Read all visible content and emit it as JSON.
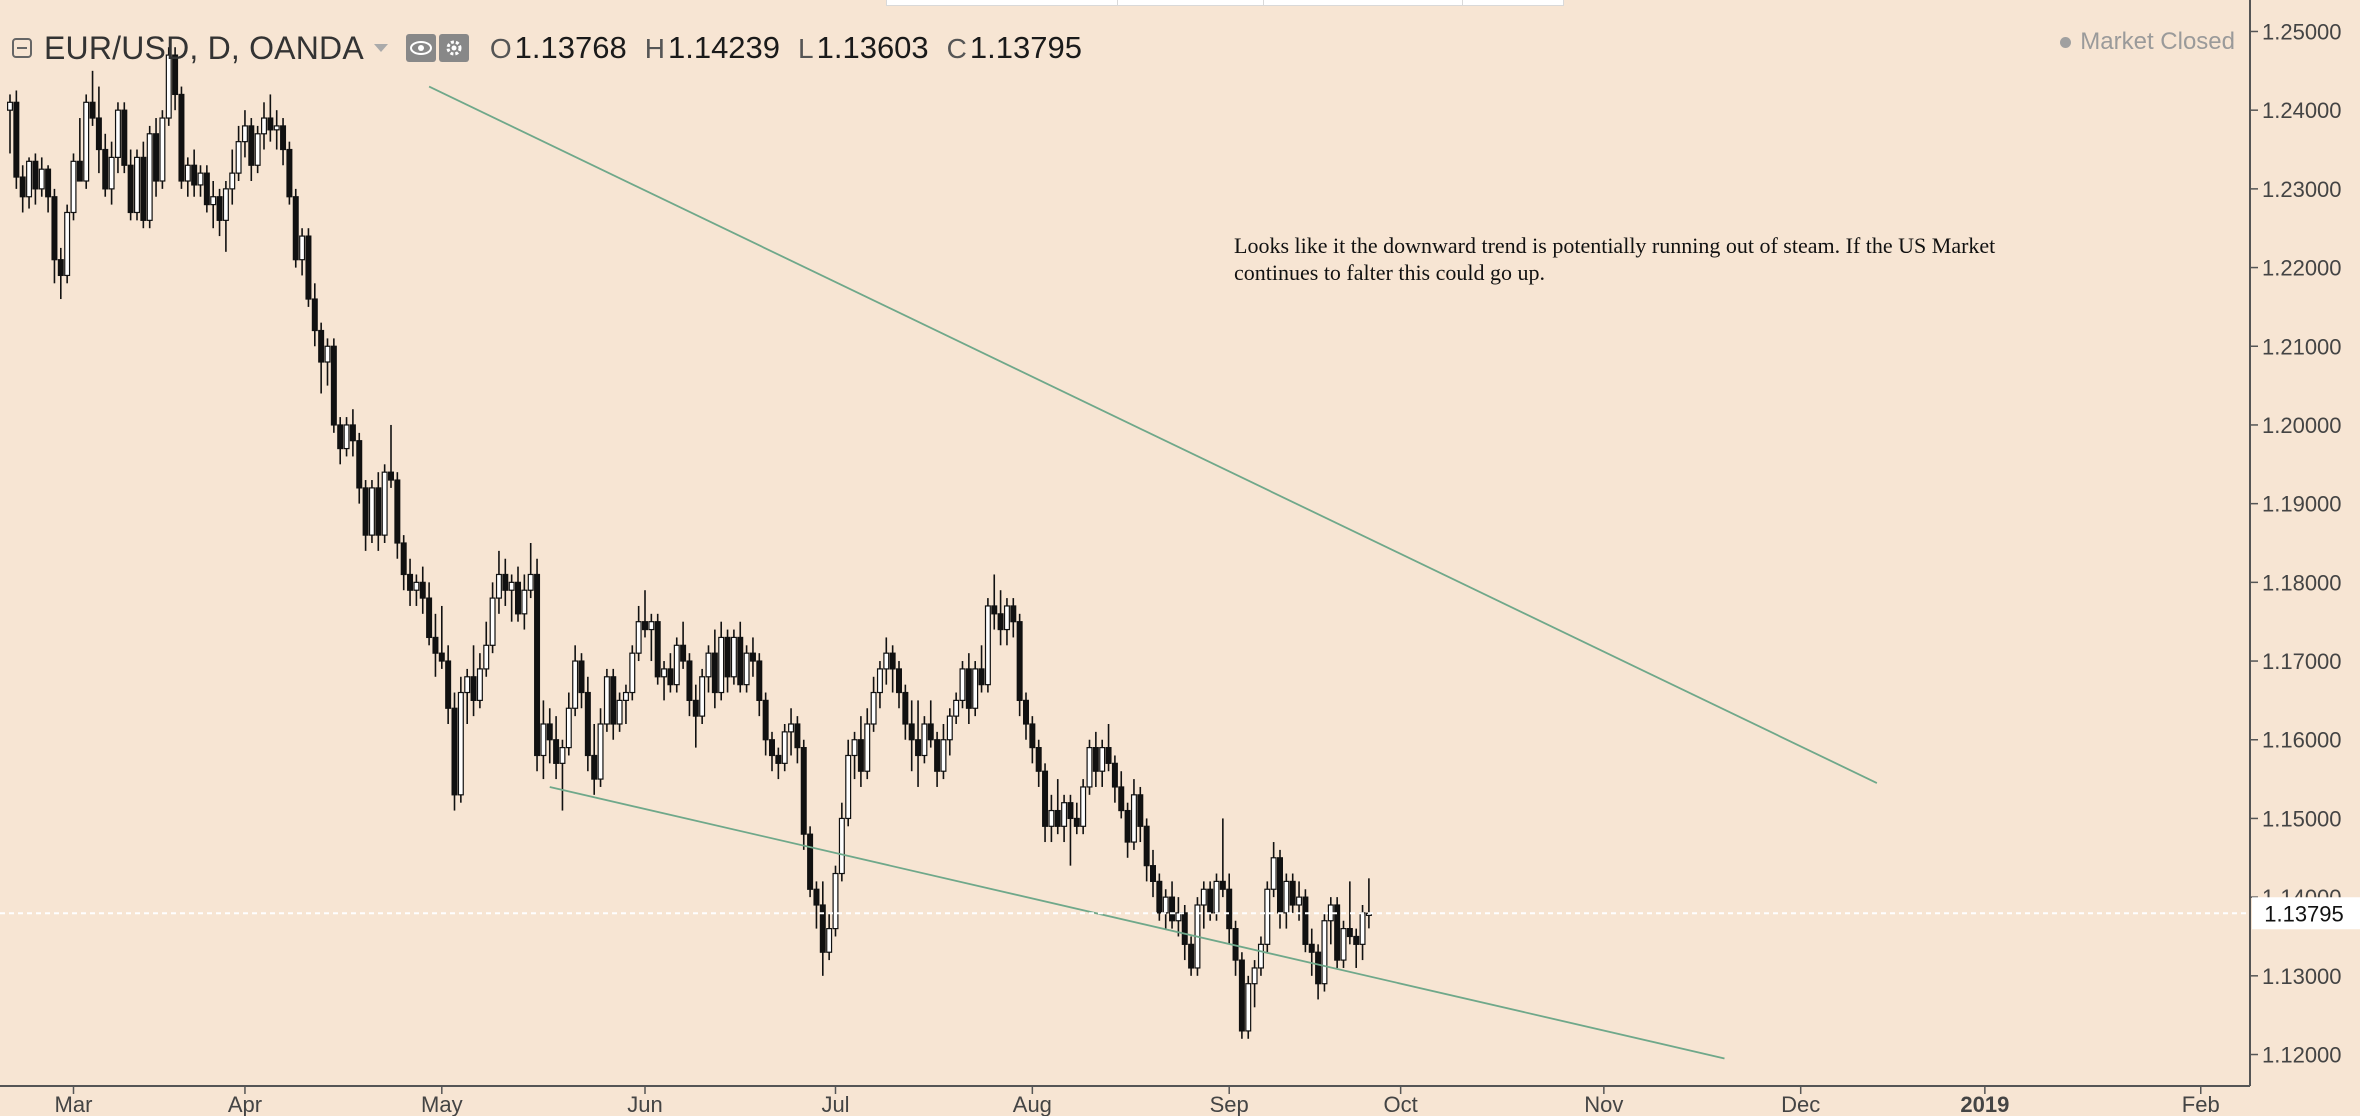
{
  "header": {
    "symbol": "EUR/USD, D, OANDA",
    "open_key": "O",
    "open": "1.13768",
    "high_key": "H",
    "high": "1.14239",
    "low_key": "L",
    "low": "1.13603",
    "close_key": "C",
    "close": "1.13795"
  },
  "status": {
    "text": "Market Closed"
  },
  "annotation": "Looks like it the downward trend is potentially running out of steam. If the US Market continues to falter this could go up.",
  "last_price_label": "1.13795",
  "colors": {
    "background": "#f7e5d3",
    "candle": "#111111",
    "trendline": "#6fa88a",
    "axis": "#555555"
  },
  "chart_data": {
    "type": "candlestick",
    "title": "EUR/USD, D, OANDA",
    "ylim": [
      1.116,
      1.254
    ],
    "y_ticks": [
      "1.25000",
      "1.24000",
      "1.23000",
      "1.22000",
      "1.21000",
      "1.20000",
      "1.19000",
      "1.18000",
      "1.17000",
      "1.16000",
      "1.15000",
      "1.14000",
      "1.13000",
      "1.12000"
    ],
    "x_ticks": [
      {
        "label": "Mar",
        "index": 10
      },
      {
        "label": "Apr",
        "index": 37
      },
      {
        "label": "May",
        "index": 68
      },
      {
        "label": "Jun",
        "index": 100
      },
      {
        "label": "Jul",
        "index": 130
      },
      {
        "label": "Aug",
        "index": 161
      },
      {
        "label": "Sep",
        "index": 192
      },
      {
        "label": "Oct",
        "index": 219
      },
      {
        "label": "Nov",
        "index": 251
      },
      {
        "label": "Dec",
        "index": 282
      },
      {
        "label": "2019",
        "index": 311
      },
      {
        "label": "Feb",
        "index": 345
      }
    ],
    "last_price": 1.13795,
    "ohlc": [
      [
        1.24,
        1.242,
        1.2345,
        1.241
      ],
      [
        1.241,
        1.2425,
        1.23,
        1.2315
      ],
      [
        1.2315,
        1.233,
        1.227,
        1.229
      ],
      [
        1.229,
        1.234,
        1.2275,
        1.2335
      ],
      [
        1.2335,
        1.2345,
        1.228,
        1.23
      ],
      [
        1.23,
        1.234,
        1.229,
        1.2325
      ],
      [
        1.2325,
        1.233,
        1.227,
        1.229
      ],
      [
        1.229,
        1.23,
        1.218,
        1.221
      ],
      [
        1.221,
        1.2225,
        1.216,
        1.219
      ],
      [
        1.219,
        1.228,
        1.218,
        1.227
      ],
      [
        1.227,
        1.2345,
        1.226,
        1.2335
      ],
      [
        1.2335,
        1.239,
        1.231,
        1.231
      ],
      [
        1.231,
        1.242,
        1.23,
        1.241
      ],
      [
        1.241,
        1.245,
        1.238,
        1.239
      ],
      [
        1.239,
        1.243,
        1.232,
        1.235
      ],
      [
        1.235,
        1.237,
        1.229,
        1.23
      ],
      [
        1.23,
        1.236,
        1.228,
        1.234
      ],
      [
        1.234,
        1.241,
        1.232,
        1.24
      ],
      [
        1.24,
        1.241,
        1.232,
        1.233
      ],
      [
        1.233,
        1.235,
        1.226,
        1.227
      ],
      [
        1.227,
        1.235,
        1.226,
        1.234
      ],
      [
        1.234,
        1.236,
        1.225,
        1.226
      ],
      [
        1.226,
        1.238,
        1.225,
        1.237
      ],
      [
        1.237,
        1.239,
        1.229,
        1.231
      ],
      [
        1.231,
        1.24,
        1.23,
        1.239
      ],
      [
        1.239,
        1.248,
        1.238,
        1.247
      ],
      [
        1.247,
        1.248,
        1.24,
        1.242
      ],
      [
        1.242,
        1.243,
        1.23,
        1.231
      ],
      [
        1.231,
        1.234,
        1.229,
        1.233
      ],
      [
        1.233,
        1.235,
        1.229,
        1.2305
      ],
      [
        1.2305,
        1.233,
        1.229,
        1.232
      ],
      [
        1.232,
        1.233,
        1.227,
        1.228
      ],
      [
        1.228,
        1.231,
        1.225,
        1.229
      ],
      [
        1.229,
        1.23,
        1.224,
        1.226
      ],
      [
        1.226,
        1.231,
        1.222,
        1.23
      ],
      [
        1.23,
        1.235,
        1.228,
        1.232
      ],
      [
        1.232,
        1.238,
        1.231,
        1.236
      ],
      [
        1.236,
        1.24,
        1.234,
        1.238
      ],
      [
        1.238,
        1.239,
        1.231,
        1.233
      ],
      [
        1.233,
        1.238,
        1.232,
        1.237
      ],
      [
        1.237,
        1.241,
        1.235,
        1.239
      ],
      [
        1.239,
        1.242,
        1.236,
        1.2375
      ],
      [
        1.2375,
        1.24,
        1.235,
        1.238
      ],
      [
        1.238,
        1.239,
        1.233,
        1.235
      ],
      [
        1.235,
        1.236,
        1.228,
        1.229
      ],
      [
        1.229,
        1.23,
        1.22,
        1.221
      ],
      [
        1.221,
        1.225,
        1.219,
        1.224
      ],
      [
        1.224,
        1.225,
        1.215,
        1.216
      ],
      [
        1.216,
        1.218,
        1.21,
        1.212
      ],
      [
        1.212,
        1.213,
        1.204,
        1.208
      ],
      [
        1.208,
        1.211,
        1.205,
        1.21
      ],
      [
        1.21,
        1.211,
        1.199,
        1.2
      ],
      [
        1.2,
        1.201,
        1.195,
        1.197
      ],
      [
        1.197,
        1.201,
        1.196,
        1.2
      ],
      [
        1.2,
        1.202,
        1.196,
        1.198
      ],
      [
        1.198,
        1.199,
        1.19,
        1.192
      ],
      [
        1.192,
        1.193,
        1.184,
        1.186
      ],
      [
        1.186,
        1.193,
        1.185,
        1.192
      ],
      [
        1.192,
        1.194,
        1.184,
        1.186
      ],
      [
        1.186,
        1.195,
        1.185,
        1.194
      ],
      [
        1.194,
        1.2,
        1.192,
        1.193
      ],
      [
        1.193,
        1.194,
        1.183,
        1.185
      ],
      [
        1.185,
        1.186,
        1.179,
        1.181
      ],
      [
        1.181,
        1.183,
        1.177,
        1.179
      ],
      [
        1.179,
        1.181,
        1.177,
        1.18
      ],
      [
        1.18,
        1.182,
        1.176,
        1.178
      ],
      [
        1.178,
        1.18,
        1.172,
        1.173
      ],
      [
        1.173,
        1.176,
        1.168,
        1.171
      ],
      [
        1.171,
        1.177,
        1.169,
        1.17
      ],
      [
        1.17,
        1.172,
        1.162,
        1.164
      ],
      [
        1.164,
        1.166,
        1.151,
        1.153
      ],
      [
        1.153,
        1.168,
        1.152,
        1.166
      ],
      [
        1.166,
        1.169,
        1.162,
        1.168
      ],
      [
        1.168,
        1.172,
        1.163,
        1.165
      ],
      [
        1.165,
        1.171,
        1.164,
        1.169
      ],
      [
        1.169,
        1.175,
        1.168,
        1.172
      ],
      [
        1.172,
        1.18,
        1.171,
        1.178
      ],
      [
        1.178,
        1.184,
        1.176,
        1.181
      ],
      [
        1.181,
        1.183,
        1.177,
        1.179
      ],
      [
        1.179,
        1.181,
        1.175,
        1.18
      ],
      [
        1.18,
        1.182,
        1.175,
        1.176
      ],
      [
        1.176,
        1.181,
        1.174,
        1.179
      ],
      [
        1.179,
        1.185,
        1.178,
        1.181
      ],
      [
        1.181,
        1.183,
        1.156,
        1.158
      ],
      [
        1.158,
        1.165,
        1.155,
        1.162
      ],
      [
        1.162,
        1.164,
        1.157,
        1.16
      ],
      [
        1.16,
        1.163,
        1.155,
        1.157
      ],
      [
        1.157,
        1.16,
        1.151,
        1.159
      ],
      [
        1.159,
        1.166,
        1.158,
        1.164
      ],
      [
        1.164,
        1.172,
        1.163,
        1.17
      ],
      [
        1.17,
        1.171,
        1.164,
        1.166
      ],
      [
        1.166,
        1.168,
        1.156,
        1.158
      ],
      [
        1.158,
        1.162,
        1.153,
        1.155
      ],
      [
        1.155,
        1.164,
        1.154,
        1.162
      ],
      [
        1.162,
        1.169,
        1.161,
        1.168
      ],
      [
        1.168,
        1.169,
        1.16,
        1.162
      ],
      [
        1.162,
        1.166,
        1.161,
        1.165
      ],
      [
        1.165,
        1.167,
        1.162,
        1.166
      ],
      [
        1.166,
        1.172,
        1.165,
        1.171
      ],
      [
        1.171,
        1.177,
        1.17,
        1.175
      ],
      [
        1.175,
        1.179,
        1.173,
        1.174
      ],
      [
        1.174,
        1.176,
        1.17,
        1.175
      ],
      [
        1.175,
        1.176,
        1.167,
        1.168
      ],
      [
        1.168,
        1.17,
        1.165,
        1.169
      ],
      [
        1.169,
        1.171,
        1.166,
        1.167
      ],
      [
        1.167,
        1.173,
        1.166,
        1.172
      ],
      [
        1.172,
        1.175,
        1.169,
        1.17
      ],
      [
        1.17,
        1.171,
        1.163,
        1.165
      ],
      [
        1.165,
        1.167,
        1.159,
        1.163
      ],
      [
        1.163,
        1.169,
        1.162,
        1.168
      ],
      [
        1.168,
        1.172,
        1.166,
        1.171
      ],
      [
        1.171,
        1.174,
        1.164,
        1.166
      ],
      [
        1.166,
        1.175,
        1.165,
        1.173
      ],
      [
        1.173,
        1.174,
        1.166,
        1.168
      ],
      [
        1.168,
        1.174,
        1.167,
        1.173
      ],
      [
        1.173,
        1.175,
        1.166,
        1.167
      ],
      [
        1.167,
        1.172,
        1.166,
        1.171
      ],
      [
        1.171,
        1.173,
        1.168,
        1.17
      ],
      [
        1.17,
        1.171,
        1.163,
        1.165
      ],
      [
        1.165,
        1.166,
        1.158,
        1.16
      ],
      [
        1.16,
        1.161,
        1.156,
        1.158
      ],
      [
        1.158,
        1.159,
        1.155,
        1.157
      ],
      [
        1.157,
        1.162,
        1.156,
        1.161
      ],
      [
        1.161,
        1.164,
        1.158,
        1.162
      ],
      [
        1.162,
        1.163,
        1.157,
        1.159
      ],
      [
        1.159,
        1.16,
        1.146,
        1.148
      ],
      [
        1.148,
        1.149,
        1.14,
        1.141
      ],
      [
        1.141,
        1.142,
        1.136,
        1.139
      ],
      [
        1.139,
        1.142,
        1.13,
        1.133
      ],
      [
        1.133,
        1.138,
        1.132,
        1.136
      ],
      [
        1.136,
        1.144,
        1.135,
        1.143
      ],
      [
        1.143,
        1.152,
        1.142,
        1.15
      ],
      [
        1.15,
        1.16,
        1.149,
        1.158
      ],
      [
        1.158,
        1.161,
        1.155,
        1.16
      ],
      [
        1.16,
        1.163,
        1.154,
        1.156
      ],
      [
        1.156,
        1.164,
        1.155,
        1.162
      ],
      [
        1.162,
        1.168,
        1.161,
        1.166
      ],
      [
        1.166,
        1.17,
        1.164,
        1.169
      ],
      [
        1.169,
        1.173,
        1.167,
        1.171
      ],
      [
        1.171,
        1.172,
        1.166,
        1.169
      ],
      [
        1.169,
        1.17,
        1.164,
        1.166
      ],
      [
        1.166,
        1.167,
        1.16,
        1.162
      ],
      [
        1.162,
        1.165,
        1.156,
        1.16
      ],
      [
        1.16,
        1.165,
        1.154,
        1.158
      ],
      [
        1.158,
        1.163,
        1.157,
        1.162
      ],
      [
        1.162,
        1.165,
        1.159,
        1.16
      ],
      [
        1.16,
        1.161,
        1.154,
        1.156
      ],
      [
        1.156,
        1.162,
        1.155,
        1.16
      ],
      [
        1.16,
        1.164,
        1.158,
        1.163
      ],
      [
        1.163,
        1.166,
        1.162,
        1.165
      ],
      [
        1.165,
        1.17,
        1.164,
        1.169
      ],
      [
        1.169,
        1.171,
        1.162,
        1.164
      ],
      [
        1.164,
        1.17,
        1.163,
        1.169
      ],
      [
        1.169,
        1.172,
        1.166,
        1.167
      ],
      [
        1.167,
        1.178,
        1.166,
        1.177
      ],
      [
        1.177,
        1.181,
        1.174,
        1.176
      ],
      [
        1.176,
        1.179,
        1.172,
        1.174
      ],
      [
        1.174,
        1.178,
        1.172,
        1.177
      ],
      [
        1.177,
        1.178,
        1.173,
        1.175
      ],
      [
        1.175,
        1.176,
        1.163,
        1.165
      ],
      [
        1.165,
        1.166,
        1.16,
        1.162
      ],
      [
        1.162,
        1.163,
        1.157,
        1.159
      ],
      [
        1.159,
        1.16,
        1.154,
        1.156
      ],
      [
        1.156,
        1.157,
        1.147,
        1.149
      ],
      [
        1.149,
        1.153,
        1.147,
        1.151
      ],
      [
        1.151,
        1.155,
        1.148,
        1.149
      ],
      [
        1.149,
        1.153,
        1.147,
        1.152
      ],
      [
        1.152,
        1.153,
        1.144,
        1.15
      ],
      [
        1.15,
        1.152,
        1.148,
        1.149
      ],
      [
        1.149,
        1.155,
        1.148,
        1.154
      ],
      [
        1.154,
        1.16,
        1.153,
        1.159
      ],
      [
        1.159,
        1.161,
        1.154,
        1.156
      ],
      [
        1.156,
        1.16,
        1.154,
        1.159
      ],
      [
        1.159,
        1.162,
        1.156,
        1.157
      ],
      [
        1.157,
        1.158,
        1.152,
        1.154
      ],
      [
        1.154,
        1.156,
        1.15,
        1.151
      ],
      [
        1.151,
        1.152,
        1.145,
        1.147
      ],
      [
        1.147,
        1.155,
        1.146,
        1.153
      ],
      [
        1.153,
        1.154,
        1.147,
        1.149
      ],
      [
        1.149,
        1.15,
        1.142,
        1.144
      ],
      [
        1.144,
        1.146,
        1.14,
        1.142
      ],
      [
        1.142,
        1.143,
        1.137,
        1.138
      ],
      [
        1.138,
        1.141,
        1.136,
        1.14
      ],
      [
        1.14,
        1.142,
        1.136,
        1.137
      ],
      [
        1.137,
        1.14,
        1.135,
        1.138
      ],
      [
        1.138,
        1.139,
        1.132,
        1.134
      ],
      [
        1.134,
        1.135,
        1.13,
        1.131
      ],
      [
        1.131,
        1.14,
        1.13,
        1.139
      ],
      [
        1.139,
        1.142,
        1.136,
        1.141
      ],
      [
        1.141,
        1.142,
        1.137,
        1.138
      ],
      [
        1.138,
        1.143,
        1.137,
        1.142
      ],
      [
        1.142,
        1.15,
        1.14,
        1.141
      ],
      [
        1.141,
        1.143,
        1.134,
        1.136
      ],
      [
        1.136,
        1.137,
        1.13,
        1.132
      ],
      [
        1.132,
        1.133,
        1.122,
        1.123
      ],
      [
        1.123,
        1.13,
        1.122,
        1.129
      ],
      [
        1.129,
        1.132,
        1.126,
        1.131
      ],
      [
        1.131,
        1.135,
        1.13,
        1.134
      ],
      [
        1.134,
        1.142,
        1.133,
        1.141
      ],
      [
        1.141,
        1.147,
        1.14,
        1.145
      ],
      [
        1.145,
        1.146,
        1.136,
        1.138
      ],
      [
        1.138,
        1.143,
        1.136,
        1.142
      ],
      [
        1.142,
        1.143,
        1.138,
        1.139
      ],
      [
        1.139,
        1.142,
        1.137,
        1.14
      ],
      [
        1.14,
        1.141,
        1.133,
        1.134
      ],
      [
        1.134,
        1.136,
        1.13,
        1.133
      ],
      [
        1.133,
        1.134,
        1.127,
        1.129
      ],
      [
        1.129,
        1.138,
        1.128,
        1.137
      ],
      [
        1.137,
        1.14,
        1.134,
        1.139
      ],
      [
        1.139,
        1.14,
        1.131,
        1.132
      ],
      [
        1.132,
        1.137,
        1.131,
        1.136
      ],
      [
        1.136,
        1.142,
        1.134,
        1.135
      ],
      [
        1.135,
        1.136,
        1.131,
        1.134
      ],
      [
        1.134,
        1.139,
        1.132,
        1.138
      ],
      [
        1.13768,
        1.14239,
        1.13603,
        1.13795
      ]
    ],
    "trendlines": [
      {
        "from": [
          66,
          1.243
        ],
        "to": [
          294,
          1.1545
        ]
      },
      {
        "from": [
          85,
          1.154
        ],
        "to": [
          270,
          1.1195
        ]
      }
    ]
  }
}
